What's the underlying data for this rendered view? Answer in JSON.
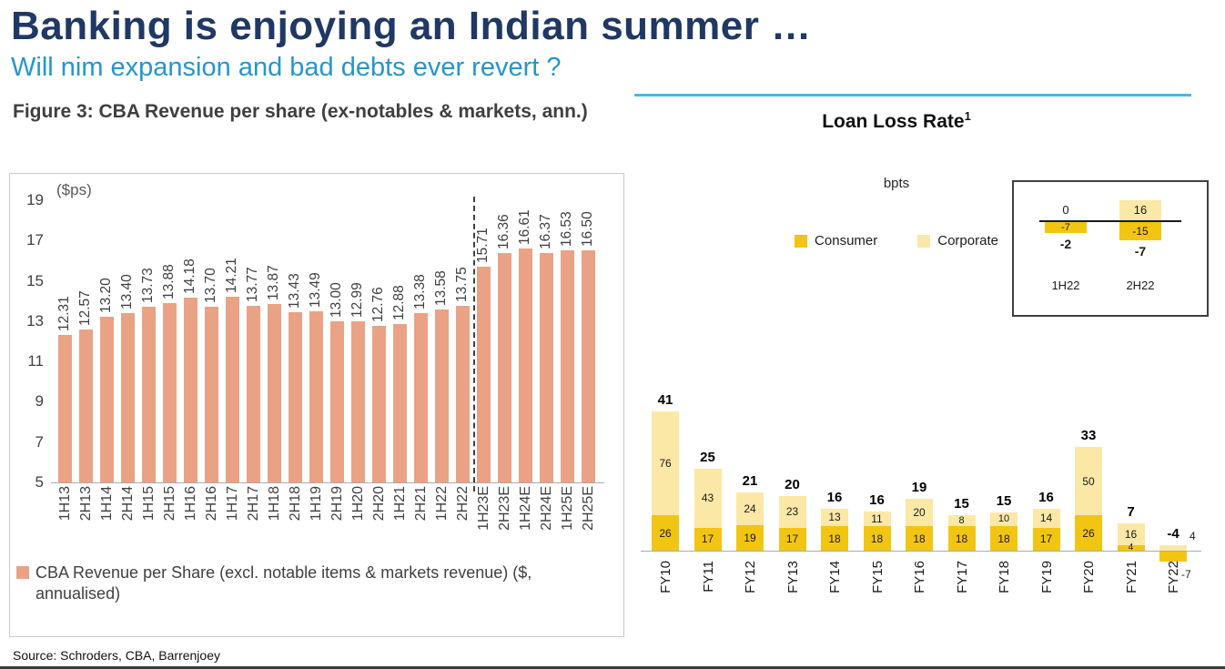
{
  "header": {
    "title": "Banking is enjoying an Indian summer …",
    "subtitle": "Will nim expansion and bad debts ever revert ?"
  },
  "footer": {
    "source": "Source: Schroders, CBA, Barrenjoey"
  },
  "figure3": {
    "title": "Figure 3: CBA Revenue per share (ex-notables & markets, ann.)",
    "axis_unit": "($ps)",
    "legend_label": "CBA Revenue per Share (excl. notable items & markets revenue) ($, annualised)"
  },
  "loan_loss": {
    "title": "Loan Loss Rate",
    "title_superscript": "1",
    "unit": "bpts",
    "legend": {
      "consumer": "Consumer",
      "corporate": "Corporate"
    }
  },
  "colors": {
    "title_navy": "#1F3864",
    "subtitle_blue": "#2496CE",
    "divider_blue": "#45B8E8",
    "bar_salmon": "#EAA285",
    "consumer_gold": "#F2C513",
    "corporate_light": "#FBE8A6"
  },
  "chart_data": [
    {
      "type": "bar",
      "title": "Figure 3: CBA Revenue per share (ex-notables & markets, ann.)",
      "ylabel": "($ps)",
      "ylim": [
        5,
        19
      ],
      "y_ticks": [
        19,
        17,
        15,
        13,
        11,
        9,
        7,
        5
      ],
      "grid": false,
      "categories": [
        "1H13",
        "2H13",
        "1H14",
        "2H14",
        "1H15",
        "2H15",
        "1H16",
        "2H16",
        "1H17",
        "2H17",
        "1H18",
        "2H18",
        "1H19",
        "2H19",
        "1H20",
        "2H20",
        "1H21",
        "2H21",
        "1H22",
        "2H22",
        "1H23E",
        "2H23E",
        "1H24E",
        "2H24E",
        "1H25E",
        "2H25E"
      ],
      "values": [
        12.31,
        12.57,
        13.2,
        13.4,
        13.73,
        13.88,
        14.18,
        13.7,
        14.21,
        13.77,
        13.87,
        13.43,
        13.49,
        13.0,
        12.99,
        12.76,
        12.88,
        13.38,
        13.58,
        13.75,
        15.71,
        16.36,
        16.61,
        16.37,
        16.53,
        16.5
      ],
      "estimate_divider_after": "2H22",
      "legend": [
        "CBA Revenue per Share (excl. notable items & markets revenue) ($, annualised)"
      ],
      "legend_position": "bottom"
    },
    {
      "type": "bar",
      "subtype": "stacked",
      "title": "Loan Loss Rate¹",
      "ylabel": "bpts",
      "categories": [
        "FY10",
        "FY11",
        "FY12",
        "FY13",
        "FY14",
        "FY15",
        "FY16",
        "FY17",
        "FY18",
        "FY19",
        "FY20",
        "FY21",
        "FY22"
      ],
      "series": [
        {
          "name": "Consumer",
          "values": [
            26,
            17,
            19,
            17,
            18,
            18,
            18,
            18,
            18,
            17,
            26,
            4,
            -7
          ]
        },
        {
          "name": "Corporate",
          "values": [
            76,
            43,
            24,
            23,
            13,
            11,
            20,
            8,
            10,
            14,
            50,
            16,
            4
          ]
        }
      ],
      "totals": [
        41,
        25,
        21,
        20,
        16,
        16,
        19,
        15,
        15,
        16,
        33,
        7,
        -4
      ],
      "legend_position": "top",
      "inset_table": {
        "columns": [
          "1H22",
          "2H22"
        ],
        "corporate": [
          0,
          16
        ],
        "consumer": [
          -7,
          -15
        ],
        "total": [
          -2,
          -7
        ]
      }
    }
  ]
}
